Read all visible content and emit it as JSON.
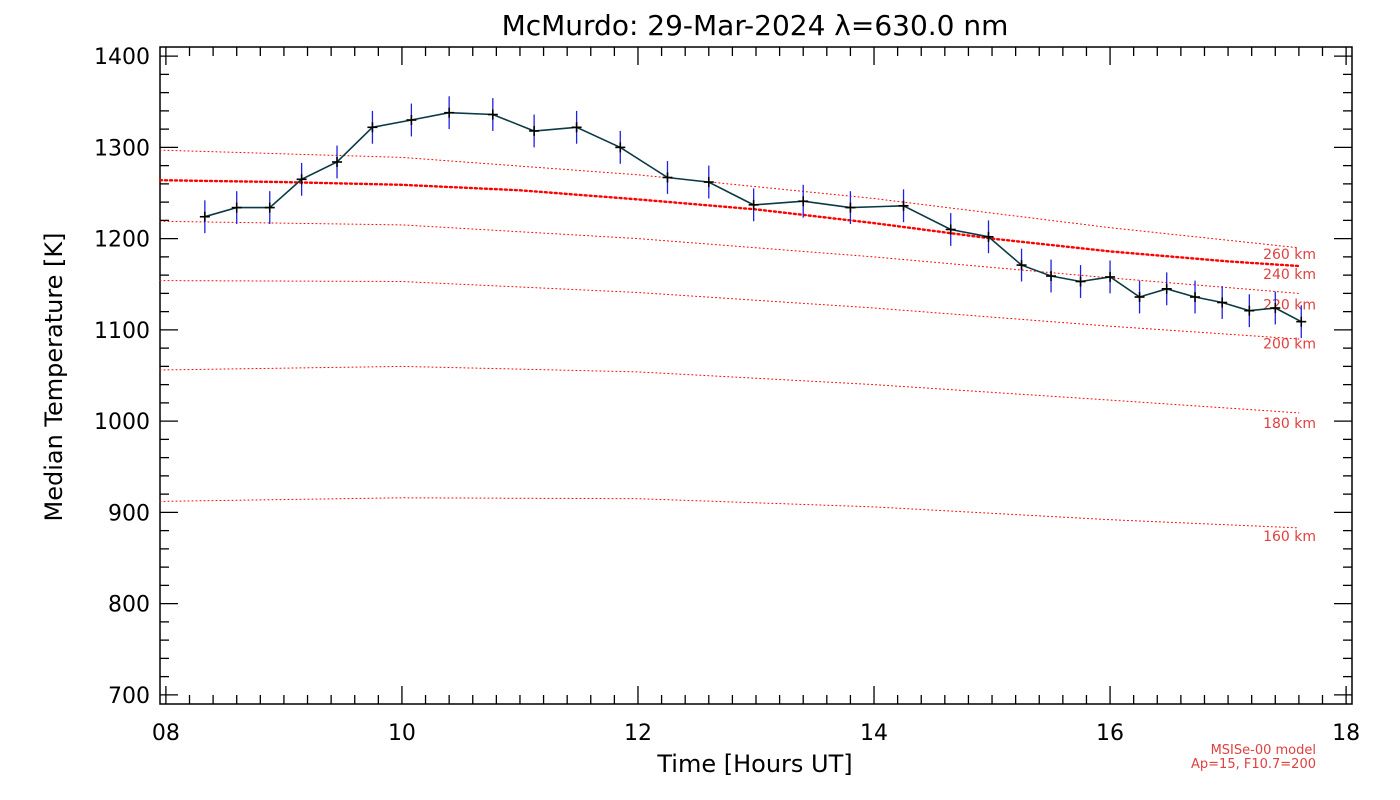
{
  "chart_data": {
    "type": "line",
    "title": "McMurdo: 29-Mar-2024 λ=630.0 nm",
    "xlabel": "Time [Hours UT]",
    "ylabel": "Median Temperature [K]",
    "xlim": [
      7.95,
      18.05
    ],
    "ylim": [
      690,
      1410
    ],
    "xticks": [
      "08",
      "10",
      "12",
      "14",
      "16",
      "18"
    ],
    "yticks": [
      "700",
      "800",
      "900",
      "1000",
      "1100",
      "1200",
      "1300",
      "1400"
    ],
    "grid": false,
    "colors": {
      "data_line": "#0a3a46",
      "error_bar": "#2020e0",
      "marker": "#000000",
      "model": "#ff0000",
      "model_text": "#e04040"
    },
    "series": [
      {
        "x": [
          8.33,
          8.6,
          8.88,
          9.15,
          9.45,
          9.75,
          10.08,
          10.4,
          10.77,
          11.12,
          11.48,
          11.85,
          12.25,
          12.6,
          12.98,
          13.4,
          13.8,
          14.25,
          14.65,
          14.97,
          15.25,
          15.5,
          15.75,
          16.0,
          16.25,
          16.48,
          16.72,
          16.95,
          17.18,
          17.4,
          17.62
        ],
        "y": [
          1224,
          1234,
          1234,
          1265,
          1284,
          1322,
          1330,
          1338,
          1336,
          1318,
          1322,
          1300,
          1267,
          1262,
          1237,
          1241,
          1234,
          1236,
          1210,
          1202,
          1171,
          1159,
          1153,
          1158,
          1136,
          1145,
          1136,
          1130,
          1121,
          1124,
          1109
        ],
        "err": 18
      }
    ],
    "model_curves": [
      {
        "label": "160 km",
        "x": [
          7.95,
          10,
          12,
          14,
          16,
          17.6
        ],
        "y": [
          912,
          916,
          915,
          906,
          892,
          883
        ],
        "style": "dotted-thin"
      },
      {
        "label": "180 km",
        "x": [
          7.95,
          10,
          12,
          14,
          16,
          17.6
        ],
        "y": [
          1056,
          1060,
          1054,
          1040,
          1023,
          1009
        ],
        "style": "dotted-thin"
      },
      {
        "label": "200 km",
        "x": [
          7.95,
          10,
          12,
          14,
          16,
          17.6
        ],
        "y": [
          1154,
          1153,
          1141,
          1124,
          1104,
          1090
        ],
        "style": "dotted-thin"
      },
      {
        "label": "220 km",
        "x": [
          7.95,
          10,
          12,
          14,
          16,
          17.6
        ],
        "y": [
          1219,
          1215,
          1200,
          1180,
          1157,
          1140
        ],
        "style": "dotted-thin"
      },
      {
        "label": "240 km",
        "x": [
          7.95,
          10,
          12,
          14,
          16,
          17.6
        ],
        "y": [
          1297,
          1289,
          1270,
          1244,
          1212,
          1190
        ],
        "style": "dotted-thin"
      },
      {
        "label": "260 km",
        "x": [
          7.95,
          9.0,
          10,
          11,
          12,
          13,
          14,
          15,
          16,
          17,
          17.6
        ],
        "y": [
          1264,
          1262,
          1259,
          1253,
          1243,
          1232,
          1217,
          1200,
          1186,
          1175,
          1170
        ],
        "style": "dotted-thick"
      }
    ],
    "model_label_positions": {
      "160 km": 874,
      "180 km": 998,
      "200 km": 1085,
      "220 km": 1128,
      "240 km": 1161,
      "260 km": 1183
    },
    "note": [
      "MSISe-00 model",
      "Ap=15, F10.7=200"
    ]
  }
}
